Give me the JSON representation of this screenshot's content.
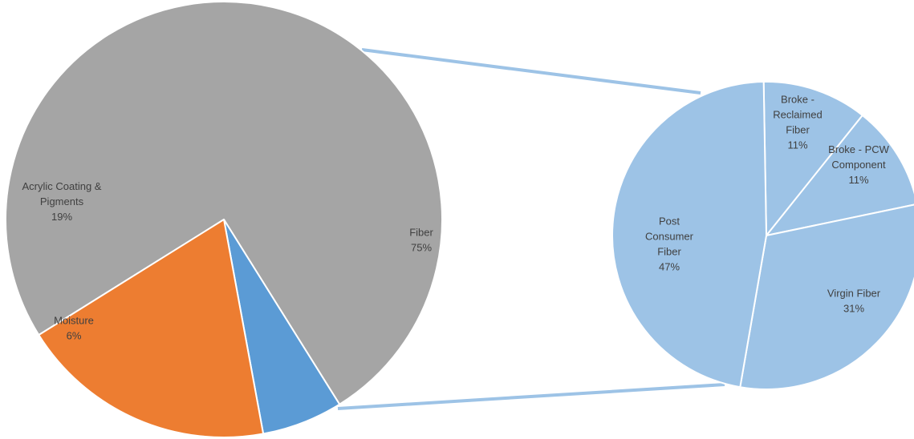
{
  "chart_data": {
    "type": "pie",
    "subtype": "pie-of-pie",
    "title": "",
    "main": {
      "slices": [
        {
          "name": "Fiber",
          "lines": [
            "Fiber"
          ],
          "value": 75,
          "label": "75%",
          "color": "#a5a5a5"
        },
        {
          "name": "Moisture",
          "lines": [
            "Moisture"
          ],
          "value": 6,
          "label": "6%",
          "color": "#5b9bd5"
        },
        {
          "name": "Acrylic Coating & Pigments",
          "lines": [
            "Acrylic Coating &",
            "Pigments"
          ],
          "value": 19,
          "label": "19%",
          "color": "#ed7d31"
        }
      ]
    },
    "breakout": {
      "of": "Fiber",
      "connector_color": "#9dc3e6",
      "slices": [
        {
          "name": "Broke - Reclaimed Fiber",
          "lines": [
            "Broke -",
            "Reclaimed",
            "Fiber"
          ],
          "value": 11,
          "label": "11%",
          "color": "#9dc3e6"
        },
        {
          "name": "Broke - PCW Component",
          "lines": [
            "Broke - PCW",
            "Component"
          ],
          "value": 11,
          "label": "11%",
          "color": "#9dc3e6"
        },
        {
          "name": "Virgin Fiber",
          "lines": [
            "Virgin Fiber"
          ],
          "value": 31,
          "label": "31%",
          "color": "#9dc3e6"
        },
        {
          "name": "Post Consumer Fiber",
          "lines": [
            "Post",
            "Consumer",
            "Fiber"
          ],
          "value": 47,
          "label": "47%",
          "color": "#9dc3e6"
        }
      ]
    },
    "legend": "none",
    "grid": false
  }
}
